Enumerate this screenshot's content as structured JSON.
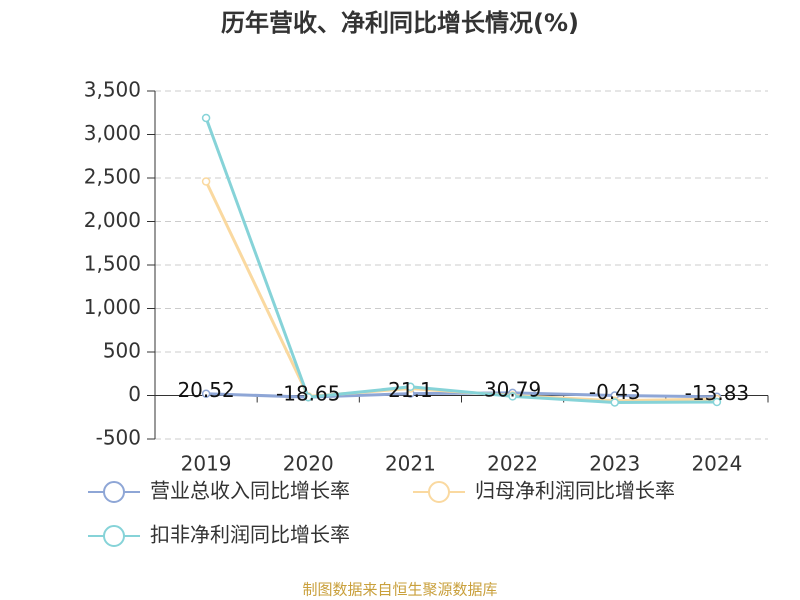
{
  "chart_data": {
    "type": "line",
    "title": "历年营收、净利同比增长情况(%)",
    "categories": [
      "2019",
      "2020",
      "2021",
      "2022",
      "2023",
      "2024"
    ],
    "series": [
      {
        "name": "营业总收入同比增长率",
        "color": "#8ea6d6",
        "values": [
          20.52,
          -18.65,
          21.1,
          30.79,
          -0.43,
          -13.83
        ]
      },
      {
        "name": "归母净利润同比增长率",
        "color": "#fad9a0",
        "values": [
          2460,
          -10,
          80,
          0,
          -60,
          -40
        ]
      },
      {
        "name": "扣非净利润同比增长率",
        "color": "#86d3d8",
        "values": [
          3190,
          -20,
          100,
          -10,
          -80,
          -75
        ]
      }
    ],
    "ylim": [
      -500,
      3500
    ],
    "yticks": [
      -500,
      0,
      500,
      {
        "value": 1000,
        "label": "1,000"
      },
      {
        "value": 1500,
        "label": "1,500"
      },
      {
        "value": 2000,
        "label": "2,000"
      },
      {
        "value": 2500,
        "label": "2,500"
      },
      {
        "value": 3000,
        "label": "3,000"
      },
      {
        "value": 3500,
        "label": "3,500"
      }
    ],
    "grid": true,
    "source": "制图数据来自恒生聚源数据库"
  }
}
